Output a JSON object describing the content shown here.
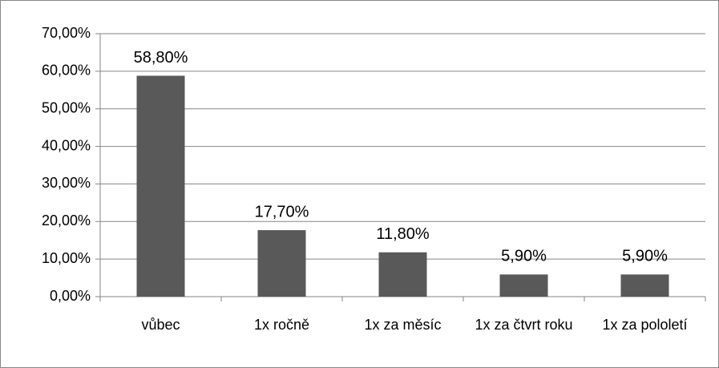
{
  "chart_data": {
    "type": "bar",
    "categories": [
      "vůbec",
      "1x ročně",
      "1x za měsíc",
      "1x za čtvrt roku",
      "1x za pololetí"
    ],
    "values": [
      58.8,
      17.7,
      11.8,
      5.9,
      5.9
    ],
    "value_labels": [
      "58,80%",
      "17,70%",
      "11,80%",
      "5,90%",
      "5,90%"
    ],
    "color": "#595959",
    "ylim": [
      0,
      70
    ],
    "yticks": [
      {
        "value": 0,
        "label": "0,00%"
      },
      {
        "value": 10,
        "label": "10,00%"
      },
      {
        "value": 20,
        "label": "20,00%"
      },
      {
        "value": 30,
        "label": "30,00%"
      },
      {
        "value": 40,
        "label": "40,00%"
      },
      {
        "value": 50,
        "label": "50,00%"
      },
      {
        "value": 60,
        "label": "60,00%"
      },
      {
        "value": 70,
        "label": "70,00%"
      }
    ],
    "grid": true
  }
}
